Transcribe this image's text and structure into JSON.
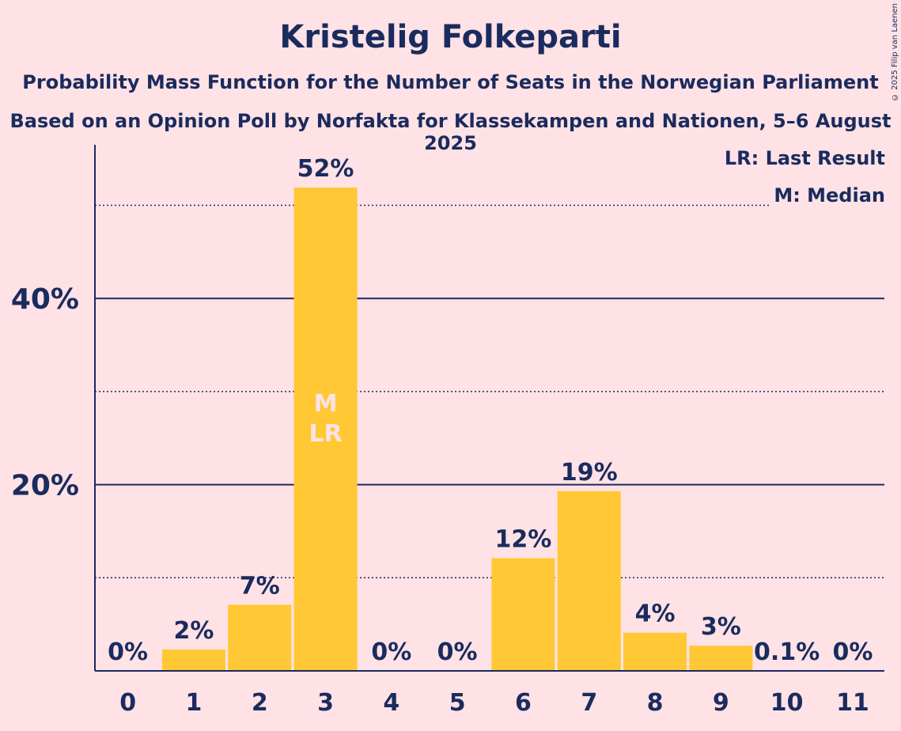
{
  "title": "Kristelig Folkeparti",
  "subtitle_1": "Probability Mass Function for the Number of Seats in the Norwegian Parliament",
  "subtitle_2": "Based on an Opinion Poll by Norfakta for Klassekampen and Nationen, 5–6 August 2025",
  "copyright": "© 2025 Filip van Laenen",
  "legend": {
    "last_result": "LR: Last Result",
    "median": "M: Median"
  },
  "colors": {
    "background": "#FFE2E5",
    "bar": "#FFC834",
    "text": "#1A2B5E",
    "marker_text": "#FFE2E5"
  },
  "chart_data": {
    "type": "bar",
    "title": "Kristelig Folkeparti",
    "xlabel": "",
    "ylabel": "",
    "categories": [
      "0",
      "1",
      "2",
      "3",
      "4",
      "5",
      "6",
      "7",
      "8",
      "9",
      "10",
      "11"
    ],
    "values": [
      0,
      2.3,
      7.1,
      51.9,
      0,
      0,
      12.1,
      19.3,
      4.1,
      2.7,
      0.1,
      0
    ],
    "data_labels": [
      "0%",
      "2%",
      "7%",
      "52%",
      "0%",
      "0%",
      "12%",
      "19%",
      "4%",
      "3%",
      "0.1%",
      "0%"
    ],
    "ylim": [
      0,
      56.5
    ],
    "y_major_ticks": [
      20,
      40
    ],
    "y_major_tick_labels": [
      "20%",
      "40%"
    ],
    "y_minor_gridlines": [
      10,
      30,
      50
    ],
    "median_seat": "3",
    "last_result_seat": "3",
    "median_marker": "M",
    "last_result_marker": "LR"
  }
}
